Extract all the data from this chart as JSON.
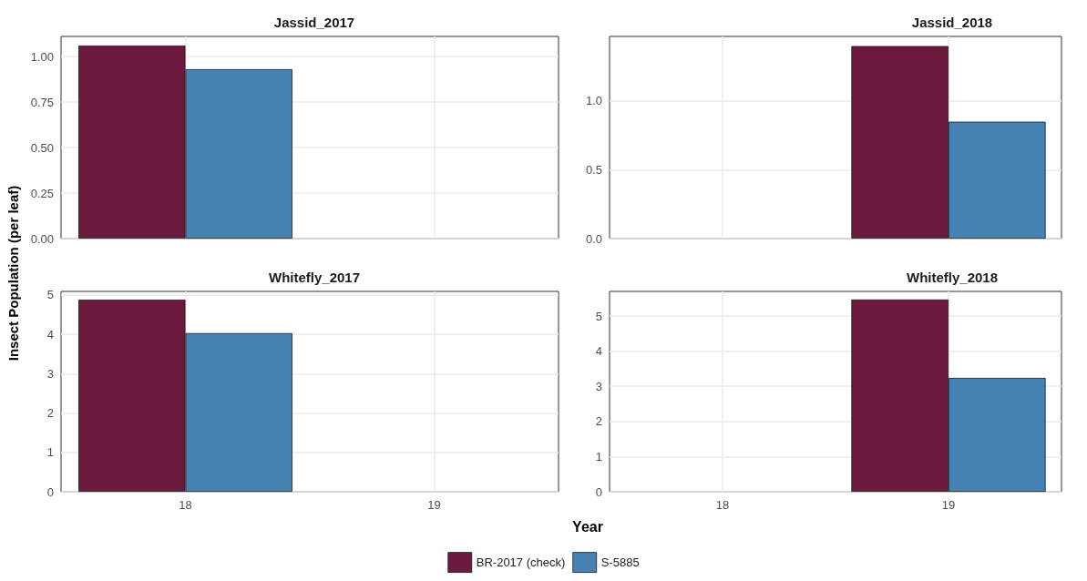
{
  "chart_data": [
    {
      "type": "bar",
      "title": "Jassid_2017",
      "categories": [
        "18",
        "19"
      ],
      "series": [
        {
          "color": "#6b1a3d",
          "values": [
            1.06,
            null
          ]
        },
        {
          "color": "#4682b4",
          "values": [
            0.93,
            null
          ]
        }
      ],
      "ylim": [
        0,
        1.11
      ],
      "yticks": [
        {
          "value": 0,
          "label": "0.00"
        },
        {
          "value": 0.25,
          "label": "0.25"
        },
        {
          "value": 0.5,
          "label": "0.50"
        },
        {
          "value": 0.75,
          "label": "0.75"
        },
        {
          "value": 1,
          "label": "1.00"
        }
      ],
      "grid": true,
      "tick_labels": "y"
    },
    {
      "type": "bar",
      "title": "Jassid_2018",
      "categories": [
        "18",
        "19"
      ],
      "series": [
        {
          "color": "#6b1a3d",
          "values": [
            null,
            1.4
          ]
        },
        {
          "color": "#4682b4",
          "values": [
            null,
            0.85
          ]
        }
      ],
      "ylim": [
        0,
        1.47
      ],
      "yticks": [
        {
          "value": 0,
          "label": "0.0"
        },
        {
          "value": 0.5,
          "label": "0.5"
        },
        {
          "value": 1,
          "label": "1.0"
        }
      ],
      "grid": true,
      "tick_labels": "y"
    },
    {
      "type": "bar",
      "title": "Whitefly_2017",
      "xlabel": "Year",
      "ylabel": "Insect Population (per leaf)",
      "legend": "bottom",
      "categories": [
        "18",
        "19"
      ],
      "series": [
        {
          "name": "BR-2017 (check)",
          "color": "#6b1a3d",
          "values": [
            4.88,
            null
          ]
        },
        {
          "name": "S-5885",
          "color": "#4682b4",
          "values": [
            4.03,
            null
          ]
        }
      ],
      "ylim": [
        0,
        5.09
      ],
      "yticks": [
        0,
        1,
        2,
        3,
        4,
        5
      ],
      "grid": true
    },
    {
      "type": "bar",
      "title": "Whitefly_2018",
      "categories": [
        "18",
        "19"
      ],
      "series": [
        {
          "color": "#6b1a3d",
          "values": [
            null,
            5.47
          ]
        },
        {
          "color": "#4682b4",
          "values": [
            null,
            3.24
          ]
        }
      ],
      "ylim": [
        0,
        5.7
      ],
      "yticks": [
        0,
        1,
        2,
        3,
        4,
        5
      ],
      "grid": true
    }
  ]
}
